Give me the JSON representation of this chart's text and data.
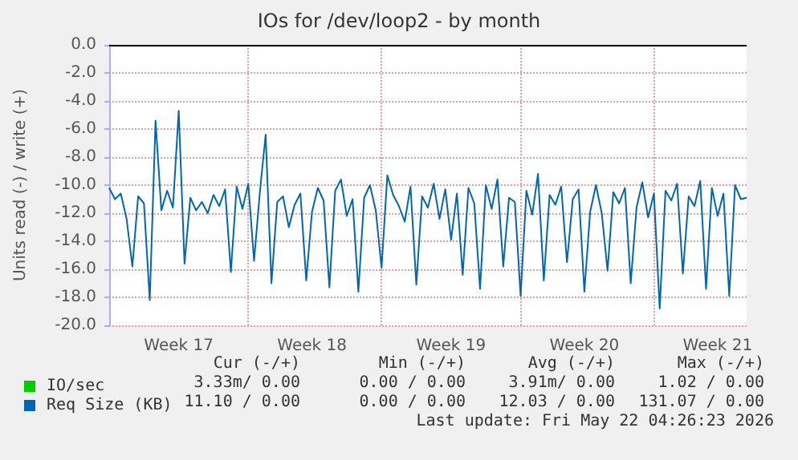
{
  "chart_data": {
    "type": "line",
    "title": "IOs for /dev/loop2 - by month",
    "ylabel": "Units read (-) / write (+)",
    "categories": [
      null,
      null,
      null,
      null,
      null,
      null,
      null,
      null,
      null,
      null,
      null,
      null,
      "Week 17",
      null,
      null,
      null,
      null,
      null,
      null,
      null,
      null,
      null,
      null,
      null,
      null,
      null,
      null,
      null,
      null,
      null,
      null,
      null,
      null,
      null,
      null,
      "Week 18",
      null,
      null,
      null,
      null,
      null,
      null,
      null,
      null,
      null,
      null,
      null,
      null,
      null,
      null,
      null,
      null,
      null,
      null,
      null,
      null,
      null,
      null,
      null,
      "Week 19",
      null,
      null,
      null,
      null,
      null,
      null,
      null,
      null,
      null,
      null,
      null,
      null,
      null,
      null,
      null,
      null,
      null,
      null,
      null,
      null,
      null,
      null,
      "Week 20",
      null,
      null,
      null,
      null,
      null,
      null,
      null,
      null,
      null,
      null,
      null,
      null,
      null,
      null,
      null,
      null,
      null,
      null,
      null,
      null,
      null,
      null,
      "Week 21",
      null,
      null,
      null,
      null,
      null
    ],
    "series": [
      {
        "name": "IO/sec",
        "color": "#00cc00",
        "values": [
          null,
          null,
          null,
          null,
          null,
          null,
          null,
          null,
          null,
          null,
          null,
          null,
          null,
          null,
          null,
          null,
          null,
          null,
          null,
          null,
          null,
          null,
          null,
          null,
          null,
          null,
          null,
          null,
          null,
          null,
          null,
          null,
          null,
          null,
          null,
          null,
          null,
          null,
          null,
          null,
          null,
          null,
          null,
          null,
          null,
          null,
          null,
          null,
          null,
          null,
          null,
          null,
          null,
          null,
          null,
          null,
          null,
          null,
          null,
          null,
          null,
          null,
          null,
          null,
          null,
          null,
          null,
          null,
          null,
          null,
          null,
          null,
          null,
          null,
          null,
          null,
          null,
          null,
          null,
          null,
          null,
          null,
          null,
          null,
          null,
          null,
          null,
          null,
          null,
          null,
          null,
          null,
          null,
          null,
          null,
          null,
          null,
          null,
          null,
          null,
          null,
          null,
          null,
          null,
          null,
          null,
          null,
          null,
          null,
          null,
          null
        ]
      },
      {
        "name": "Req Size (KB)",
        "color": "#0066b3",
        "values": [
          -10.2,
          -11.0,
          -10.6,
          -12.4,
          -15.8,
          -10.8,
          -11.3,
          -18.2,
          -5.4,
          -11.8,
          -10.4,
          -11.6,
          -4.7,
          -15.6,
          -10.9,
          -11.8,
          -11.2,
          -12.0,
          -10.7,
          -11.5,
          -10.3,
          -16.2,
          -10.1,
          -11.7,
          -9.9,
          -15.4,
          -10.5,
          -6.4,
          -17.0,
          -11.2,
          -10.8,
          -13.0,
          -11.4,
          -10.6,
          -16.8,
          -11.9,
          -10.2,
          -11.1,
          -17.3,
          -10.4,
          -9.6,
          -12.2,
          -11.0,
          -17.6,
          -10.9,
          -10.0,
          -11.8,
          -15.9,
          -9.3,
          -10.7,
          -11.5,
          -12.6,
          -10.1,
          -17.1,
          -10.8,
          -11.6,
          -9.9,
          -12.4,
          -10.3,
          -13.9,
          -10.6,
          -16.4,
          -10.2,
          -11.3,
          -17.4,
          -10.0,
          -11.7,
          -9.6,
          -15.8,
          -10.9,
          -11.2,
          -17.9,
          -10.4,
          -12.1,
          -9.2,
          -16.8,
          -10.7,
          -11.4,
          -10.1,
          -15.5,
          -11.0,
          -10.3,
          -17.6,
          -11.9,
          -10.0,
          -12.0,
          -16.1,
          -10.5,
          -11.3,
          -10.2,
          -17.0,
          -11.6,
          -9.8,
          -12.3,
          -10.6,
          -18.8,
          -10.4,
          -11.1,
          -9.9,
          -16.3,
          -10.8,
          -11.5,
          -9.7,
          -17.4,
          -10.2,
          -12.2,
          -10.6,
          -17.9,
          -10.0,
          -11.0,
          -10.9
        ]
      }
    ],
    "ylim": [
      -20,
      0
    ],
    "yticks": [
      {
        "value": -20,
        "label": "-20.0"
      },
      {
        "value": -18,
        "label": "-18.0"
      },
      {
        "value": -16,
        "label": "-16.0"
      },
      {
        "value": -14,
        "label": "-14.0"
      },
      {
        "value": -12,
        "label": "-12.0"
      },
      {
        "value": -10,
        "label": "-10.0"
      },
      {
        "value": -8,
        "label": "-8.0"
      },
      {
        "value": -6,
        "label": "-6.0"
      },
      {
        "value": -4,
        "label": "-4.0"
      },
      {
        "value": -2,
        "label": "-2.0"
      },
      {
        "value": 0,
        "label": "0.0"
      }
    ],
    "ref_lines": [
      {
        "axis": "y",
        "value": 0,
        "color": "#000000"
      }
    ],
    "grid": true,
    "legend": "bottom left",
    "marker": "none",
    "line_style": "solid",
    "annotations": [
      "Cur (-/+)",
      "Min (-/+)",
      "Avg (-/+)",
      "Max (-/+)",
      "3.33m/ 0.00",
      "0.00 / 0.00",
      "3.91m/ 0.00",
      "1.02 / 0.00",
      "11.10 / 0.00",
      "0.00 / 0.00",
      "12.03 / 0.00",
      "131.07 / 0.00",
      "Last update: Fri May 22 04:26:23 2026"
    ]
  }
}
